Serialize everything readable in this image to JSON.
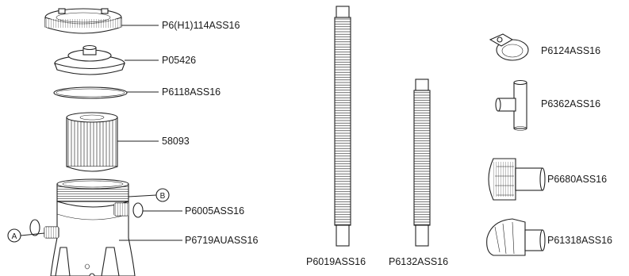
{
  "parts": {
    "lock_ring": "P6(H1)114ASS16",
    "lid": "P05426",
    "o_ring": "P6118ASS16",
    "cartridge": "58093",
    "connector_ring": "P6005ASS16",
    "pump_body": "P6719AUASS16",
    "hose_long": "P6019ASS16",
    "hose_short": "P6132ASS16",
    "clamp": "P6124ASS16",
    "t_connector": "P6362ASS16",
    "strainer_a": "P6680ASS16",
    "strainer_b": "P61318ASS16"
  },
  "callouts": {
    "a": "A",
    "b": "B"
  }
}
